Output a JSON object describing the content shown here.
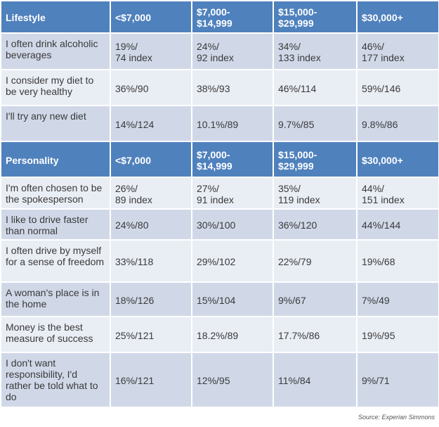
{
  "sections": [
    {
      "header": [
        "Lifestyle",
        "<$7,000",
        "$7,000-\n$14,999",
        "$15,000-\n$29,999",
        "$30,000+"
      ],
      "rows": [
        [
          "I often drink alcoholic beverages",
          "19%/\n74 index",
          "24%/\n92 index",
          "34%/\n133 index",
          "46%/\n177 index"
        ],
        [
          "I consider my diet to be very healthy",
          "36%/90",
          "38%/93",
          "46%/114",
          "59%/146"
        ],
        [
          "I'll try any new diet",
          "14%/124",
          "10.1%/89",
          "9.7%/85",
          "9.8%/86"
        ]
      ]
    },
    {
      "header": [
        "Personality",
        "<$7,000",
        "$7,000-\n$14,999",
        "$15,000-\n$29,999",
        "$30,000+"
      ],
      "rows": [
        [
          "I'm often chosen to be the spokesperson",
          "26%/\n89 index",
          "27%/\n91 index",
          "35%/\n119 index",
          "44%/\n151 index"
        ],
        [
          "I like to drive faster than normal",
          "24%/80",
          "30%/100",
          "36%/120",
          "44%/144"
        ],
        [
          "I often drive by myself for a sense of freedom",
          "33%/118",
          "29%/102",
          "22%/79",
          "19%/68"
        ],
        [
          "A woman's place is in the home",
          "18%/126",
          "15%/104",
          "9%/67",
          "7%/49"
        ],
        [
          "Money is the best measure of success",
          "25%/121",
          "18.2%/89",
          "17.7%/86",
          "19%/95"
        ],
        [
          "I don't want responsibility, I'd rather be told what to do",
          "16%/121",
          "12%/95",
          "11%/84",
          "9%/71"
        ]
      ]
    }
  ],
  "source": "Source: Experian Simmons"
}
